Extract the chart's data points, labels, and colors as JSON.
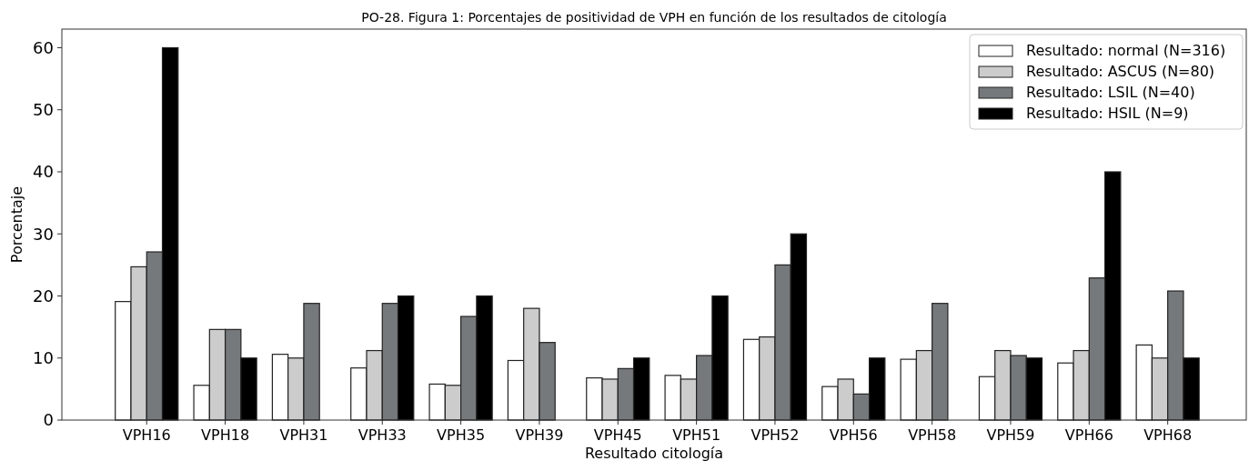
{
  "chart_data": {
    "type": "bar",
    "title": "PO-28. Figura 1: Porcentajes de positividad de VPH en función de los resultados de citología",
    "xlabel": "Resultado citología",
    "ylabel": "Porcentaje",
    "categories": [
      "VPH16",
      "VPH18",
      "VPH31",
      "VPH33",
      "VPH35",
      "VPH39",
      "VPH45",
      "VPH51",
      "VPH52",
      "VPH56",
      "VPH58",
      "VPH59",
      "VPH66",
      "VPH68"
    ],
    "series": [
      {
        "name": "Resultado: normal (N=316)",
        "color": "#ffffff",
        "values": [
          19.1,
          5.6,
          10.6,
          8.4,
          5.8,
          9.6,
          6.8,
          7.2,
          13.0,
          5.4,
          9.8,
          7.0,
          9.2,
          12.1
        ]
      },
      {
        "name": "Resultado: ASCUS (N=80)",
        "color": "#cccccc",
        "values": [
          24.7,
          14.6,
          10.0,
          11.2,
          5.6,
          18.0,
          6.6,
          6.6,
          13.4,
          6.6,
          11.2,
          11.2,
          11.2,
          10.0
        ]
      },
      {
        "name": "Resultado: LSIL (N=40)",
        "color": "#76797c",
        "values": [
          27.1,
          14.6,
          18.8,
          18.8,
          16.7,
          12.5,
          8.3,
          10.4,
          25.0,
          4.2,
          18.8,
          10.4,
          22.9,
          20.8
        ]
      },
      {
        "name": "Resultado: HSIL (N=9)",
        "color": "#000000",
        "values": [
          60,
          10,
          0,
          20,
          20,
          0,
          10,
          20,
          30,
          10,
          0,
          10,
          40,
          10
        ]
      }
    ],
    "ylim": [
      0,
      63
    ],
    "yticks": [
      0,
      10,
      20,
      30,
      40,
      50,
      60
    ],
    "grid": false,
    "legend": "top right"
  }
}
